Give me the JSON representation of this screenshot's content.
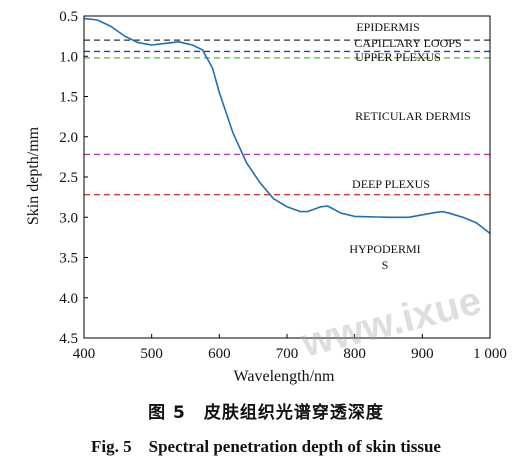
{
  "chart_data": {
    "type": "line",
    "xlabel": "Wavelength/nm",
    "ylabel": "Skin depth/mm",
    "xlim": [
      400,
      1000
    ],
    "ylim": [
      0.5,
      4.5
    ],
    "y_inverted": true,
    "grid": false,
    "x_ticks": [
      "400",
      "500",
      "600",
      "700",
      "800",
      "900",
      "1 000"
    ],
    "x_tick_values": [
      400,
      500,
      600,
      700,
      800,
      900,
      1000
    ],
    "y_ticks": [
      "0.5",
      "1.0",
      "1.5",
      "2.0",
      "2.5",
      "3.0",
      "3.5",
      "4.0",
      "4.5"
    ],
    "y_tick_values": [
      0.5,
      1.0,
      1.5,
      2.0,
      2.5,
      3.0,
      3.5,
      4.0,
      4.5
    ],
    "line_color": "#1f6fb4",
    "series": [
      {
        "x": [
          400,
          420,
          440,
          460,
          480,
          500,
          520,
          540,
          560,
          575,
          590,
          600,
          620,
          640,
          660,
          680,
          700,
          720,
          730,
          740,
          750,
          760,
          780,
          800,
          850,
          880,
          900,
          920,
          930,
          940,
          960,
          980,
          1000
        ],
        "y": [
          0.53,
          0.55,
          0.63,
          0.75,
          0.83,
          0.86,
          0.84,
          0.82,
          0.86,
          0.92,
          1.15,
          1.45,
          1.95,
          2.32,
          2.57,
          2.77,
          2.87,
          2.93,
          2.93,
          2.9,
          2.87,
          2.86,
          2.95,
          2.99,
          3.0,
          3.0,
          2.97,
          2.94,
          2.93,
          2.95,
          3.0,
          3.07,
          3.2
        ]
      }
    ],
    "layers": [
      {
        "label": "EPIDERMIS",
        "depth": 0.8,
        "color": "#333333"
      },
      {
        "label": "CAPILLARY LOOPS",
        "depth": 0.94,
        "color": "#2a3fbf"
      },
      {
        "label": "UPPER PLEXUS",
        "depth": 1.02,
        "color": "#3cbf3c"
      },
      {
        "label": "RETICULAR DERMIS",
        "depth": null,
        "color": "#111111"
      },
      {
        "label": "",
        "depth": 2.22,
        "color": "#b040b0"
      },
      {
        "label": "DEEP PLEXUS",
        "depth": 2.72,
        "color": "#d43c3c"
      },
      {
        "label": "HYPODERMI\nS",
        "depth": null,
        "color": "#111111"
      }
    ]
  },
  "caption": {
    "cn": "图 5　皮肤组织光谱穿透深度",
    "en": "Fig. 5　Spectral penetration depth of skin tissue"
  },
  "watermark": "www.ixue"
}
